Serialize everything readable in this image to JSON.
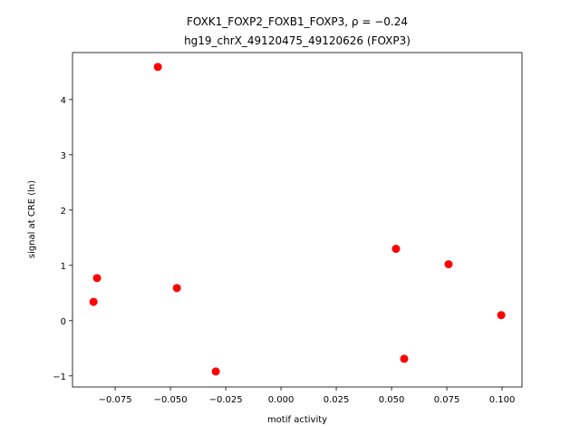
{
  "chart_data": {
    "type": "scatter",
    "title": "FOXK1_FOXP2_FOXB1_FOXP3, ρ = −0.24",
    "subtitle": "hg19_chrX_49120475_49120626 (FOXP3)",
    "x_label": "motif activity",
    "y_label": "signal at CRE (ln)",
    "color": "#ff0000",
    "x": [
      -0.0557,
      -0.0832,
      -0.0848,
      -0.0471,
      -0.0295,
      0.052,
      0.0557,
      0.0758,
      0.0996
    ],
    "values": [
      4.59,
      0.77,
      0.34,
      0.59,
      -0.92,
      1.3,
      -0.69,
      1.02,
      0.1
    ],
    "xlim": [
      -0.0943,
      0.109
    ],
    "ylim": [
      -1.2,
      4.85
    ],
    "xticks": [
      {
        "value": -0.075,
        "label": "−0.075"
      },
      {
        "value": -0.05,
        "label": "−0.050"
      },
      {
        "value": -0.025,
        "label": "−0.025"
      },
      {
        "value": 0,
        "label": "0.000"
      },
      0.025,
      {
        "value": 0.05,
        "label": "0.050"
      },
      0.075,
      {
        "value": 0.1,
        "label": "0.100"
      }
    ],
    "yticks": [
      {
        "value": -1,
        "label": "−1"
      },
      0,
      1,
      2,
      3,
      4
    ]
  }
}
